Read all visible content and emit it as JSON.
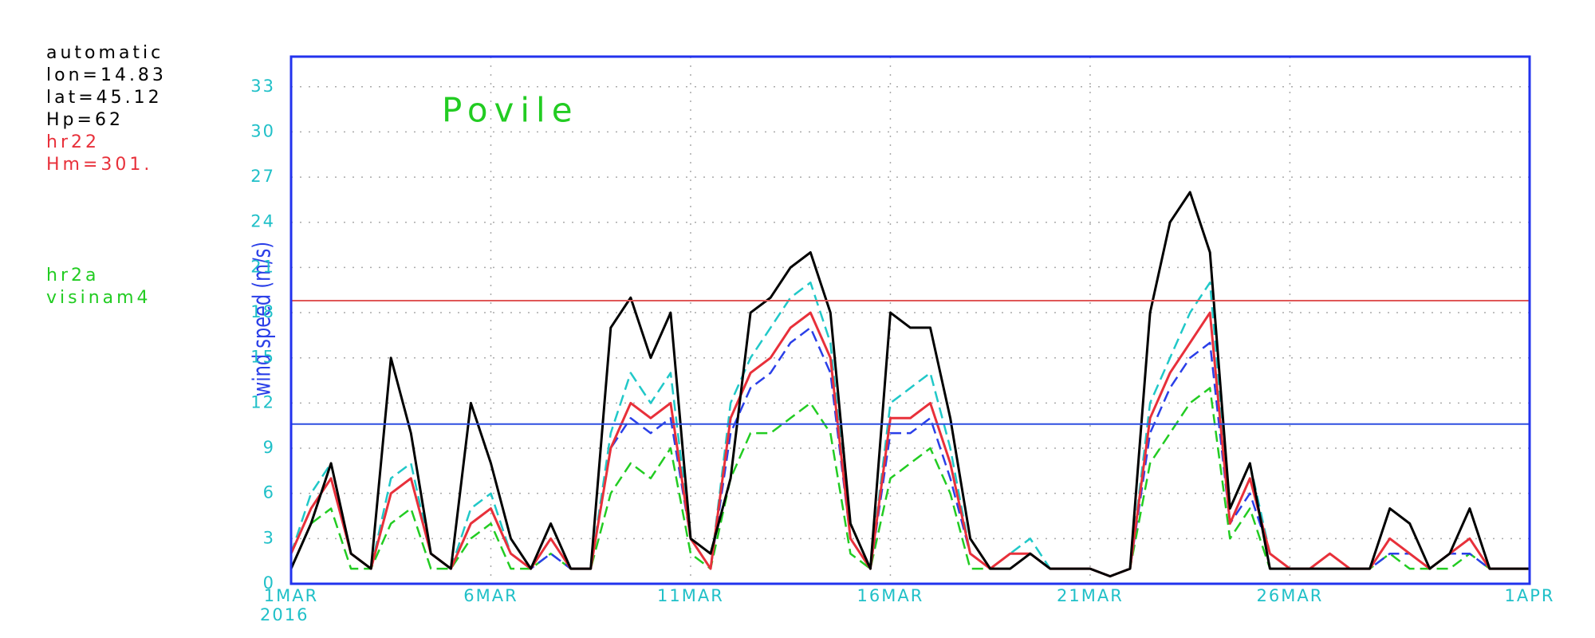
{
  "chart_data": {
    "type": "line",
    "title": "Povile",
    "y_label": "wind speed (m/s)",
    "annotations": [
      {
        "text": "automatic",
        "color": "#000000"
      },
      {
        "text": "lon=14.83",
        "color": "#000000"
      },
      {
        "text": "lat=45.12",
        "color": "#000000"
      },
      {
        "text": "Hp=62",
        "color": "#000000"
      },
      {
        "text": "hr22",
        "color": "#e8303a"
      },
      {
        "text": "Hm=301.",
        "color": "#e8303a"
      },
      {
        "text": "hr2a",
        "color": "#22cc22"
      },
      {
        "text": "visinam4",
        "color": "#22cc22"
      }
    ],
    "x_year_label": "2016",
    "x": [
      0,
      0.5,
      1,
      1.5,
      2,
      2.5,
      3,
      3.5,
      4,
      4.5,
      5,
      5.5,
      6,
      6.5,
      7,
      7.5,
      8,
      8.5,
      9,
      9.5,
      10,
      10.5,
      11,
      11.5,
      12,
      12.5,
      13,
      13.5,
      14,
      14.5,
      15,
      15.5,
      16,
      16.5,
      17,
      17.5,
      18,
      18.5,
      19,
      19.5,
      20,
      20.5,
      21,
      21.5,
      22,
      22.5,
      23,
      23.5,
      24,
      24.5,
      25,
      25.5,
      26,
      26.5,
      27,
      27.5,
      28,
      28.5,
      29,
      29.5,
      30,
      30.5,
      31
    ],
    "xlim": [
      0,
      31
    ],
    "xticks": [
      {
        "value": 0,
        "label": "1MAR"
      },
      {
        "value": 5,
        "label": "6MAR"
      },
      {
        "value": 10,
        "label": "11MAR"
      },
      {
        "value": 15,
        "label": "16MAR"
      },
      {
        "value": 20,
        "label": "21MAR"
      },
      {
        "value": 25,
        "label": "26MAR"
      },
      {
        "value": 31,
        "label": "1APR"
      }
    ],
    "ylim": [
      0,
      35
    ],
    "yticks": [
      0,
      3,
      6,
      9,
      12,
      15,
      18,
      21,
      24,
      27,
      30,
      33
    ],
    "grid": true,
    "hlines": [
      {
        "value": 18.8,
        "color": "#e05858"
      },
      {
        "value": 10.6,
        "color": "#2e4fe0"
      }
    ],
    "series": [
      {
        "color": "#22cc22",
        "dash": true,
        "values": [
          1,
          4,
          5,
          1,
          1,
          4,
          5,
          1,
          1,
          3,
          4,
          1,
          1,
          2,
          1,
          1,
          6,
          8,
          7,
          9,
          2,
          1,
          7,
          10,
          10,
          11,
          12,
          10,
          2,
          1,
          7,
          8,
          9,
          6,
          1,
          1,
          1,
          2,
          1,
          1,
          1,
          0.5,
          1,
          8,
          10,
          12,
          13,
          3,
          5,
          1,
          1,
          1,
          1,
          1,
          1,
          2,
          1,
          1,
          1,
          2,
          1,
          1,
          1
        ]
      },
      {
        "color": "#2a3fe8",
        "dash": true,
        "values": [
          2,
          5,
          7,
          2,
          1,
          6,
          7,
          2,
          1,
          4,
          5,
          2,
          1,
          2,
          1,
          1,
          9,
          11,
          10,
          11,
          3,
          1,
          10,
          13,
          14,
          16,
          17,
          14,
          3,
          1,
          10,
          10,
          11,
          7,
          2,
          1,
          2,
          2,
          1,
          1,
          1,
          0.5,
          1,
          10,
          13,
          15,
          16,
          4,
          6,
          2,
          1,
          1,
          1,
          1,
          1,
          2,
          2,
          1,
          2,
          2,
          1,
          1,
          1
        ]
      },
      {
        "color": "#20c8c8",
        "dash": true,
        "values": [
          2,
          6,
          8,
          2,
          1,
          7,
          8,
          2,
          1,
          5,
          6,
          2,
          1,
          3,
          1,
          1,
          10,
          14,
          12,
          14,
          3,
          1,
          12,
          15,
          17,
          19,
          20,
          16,
          3,
          1,
          12,
          13,
          14,
          9,
          2,
          1,
          2,
          3,
          1,
          1,
          1,
          0.5,
          1,
          12,
          15,
          18,
          20,
          5,
          8,
          2,
          1,
          1,
          2,
          1,
          1,
          3,
          2,
          1,
          2,
          3,
          1,
          1,
          1
        ]
      },
      {
        "color": "#e8303a",
        "dash": false,
        "values": [
          2,
          5,
          7,
          2,
          1,
          6,
          7,
          2,
          1,
          4,
          5,
          2,
          1,
          3,
          1,
          1,
          9,
          12,
          11,
          12,
          3,
          1,
          11,
          14,
          15,
          17,
          18,
          15,
          3,
          1,
          11,
          11,
          12,
          8,
          2,
          1,
          2,
          2,
          1,
          1,
          1,
          0.5,
          1,
          11,
          14,
          16,
          18,
          4,
          7,
          2,
          1,
          1,
          2,
          1,
          1,
          3,
          2,
          1,
          2,
          3,
          1,
          1,
          1
        ]
      },
      {
        "color": "#000000",
        "dash": false,
        "values": [
          1,
          4,
          8,
          2,
          1,
          15,
          10,
          2,
          1,
          12,
          8,
          3,
          1,
          4,
          1,
          1,
          17,
          19,
          15,
          18,
          3,
          2,
          7,
          18,
          19,
          21,
          22,
          18,
          4,
          1,
          18,
          17,
          17,
          11,
          3,
          1,
          1,
          2,
          1,
          1,
          1,
          0.5,
          1,
          18,
          24,
          26,
          22,
          5,
          8,
          1,
          1,
          1,
          1,
          1,
          1,
          5,
          4,
          1,
          2,
          5,
          1,
          1,
          1
        ]
      }
    ]
  }
}
